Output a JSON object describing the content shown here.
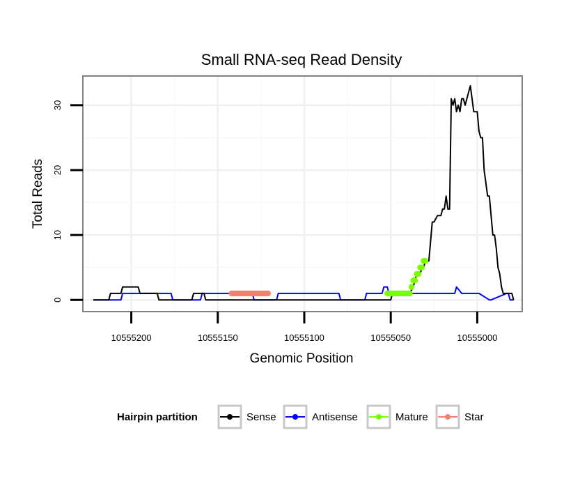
{
  "chart_data": {
    "type": "line",
    "title": "Small RNA-seq Read Density",
    "xlabel": "Genomic Position",
    "ylabel": "Total Reads",
    "x_reversed": true,
    "xlim": [
      10555228,
      10554974
    ],
    "ylim": [
      -1.8,
      34.5
    ],
    "x_ticks": [
      10555200,
      10555150,
      10555100,
      10555050,
      10555000
    ],
    "x_tick_labels": [
      "10555200",
      "10555150",
      "10555100",
      "10555050",
      "10555000"
    ],
    "y_ticks": [
      0,
      10,
      20,
      30
    ],
    "y_tick_labels": [
      "0",
      "10",
      "20",
      "30"
    ],
    "grid": true,
    "legend": {
      "title": "Hairpin partition",
      "position": "bottom",
      "entries": [
        {
          "name": "Sense",
          "color": "#000000"
        },
        {
          "name": "Antisense",
          "color": "#0000ff"
        },
        {
          "name": "Mature",
          "color": "#7cfc00"
        },
        {
          "name": "Star",
          "color": "#f08070"
        }
      ]
    },
    "series": [
      {
        "name": "Sense",
        "color": "#000000",
        "style": "line",
        "x": [
          10555222,
          10555213,
          10555212,
          10555206,
          10555205,
          10555196,
          10555195,
          10555191,
          10555190,
          10555185,
          10555184,
          10555165,
          10555164,
          10555158,
          10555157,
          10555135,
          10555134,
          10555105,
          10555104,
          10555074,
          10555073,
          10555050,
          10555049,
          10555046,
          10555045,
          10555043,
          10555042,
          10555040,
          10555039,
          10555037,
          10555036,
          10555035,
          10555033,
          10555032,
          10555031,
          10555030,
          10555029,
          10555028,
          10555026,
          10555025,
          10555023,
          10555022,
          10555021,
          10555020,
          10555019,
          10555018,
          10555017,
          10555016,
          10555015,
          10555014,
          10555013,
          10555012,
          10555011,
          10555010,
          10555009,
          10555008,
          10555007,
          10555006,
          10555004,
          10555002,
          10555001,
          10555000,
          10554999,
          10554998,
          10554997,
          10554996,
          10554995,
          10554994,
          10554993,
          10554992,
          10554991,
          10554990,
          10554989,
          10554988,
          10554987,
          10554986,
          10554985,
          10554984,
          10554983,
          10554982,
          10554981,
          10554980,
          10554979
        ],
        "y": [
          0,
          0,
          1,
          1,
          2,
          2,
          1,
          1,
          1,
          1,
          0,
          0,
          1,
          1,
          0,
          0,
          0,
          0,
          0,
          0,
          0,
          0,
          1,
          1,
          1,
          1,
          1,
          1,
          1,
          2,
          3,
          4,
          4,
          5,
          5,
          6,
          6,
          6,
          12,
          12,
          13,
          13,
          13,
          14,
          14,
          16,
          14,
          14,
          31,
          30,
          31,
          29,
          30,
          29,
          31,
          31,
          30,
          31,
          33,
          29,
          29,
          29,
          26,
          25,
          25,
          20,
          18,
          16,
          16,
          13,
          10,
          10,
          8,
          5,
          4,
          2,
          1,
          1,
          1,
          1,
          1,
          1,
          0
        ]
      },
      {
        "name": "Antisense",
        "color": "#0000ff",
        "style": "line",
        "x": [
          10555222,
          10555206,
          10555205,
          10555196,
          10555195,
          10555191,
          10555190,
          10555177,
          10555176,
          10555160,
          10555159,
          10555130,
          10555129,
          10555116,
          10555115,
          10555097,
          10555096,
          10555080,
          10555079,
          10555074,
          10555073,
          10555065,
          10555064,
          10555055,
          10555054,
          10555052,
          10555051,
          10555036,
          10555035,
          10555029,
          10555028,
          10555013,
          10555012,
          10555009,
          10555008,
          10555000,
          10554999,
          10554993,
          10554992,
          10554983,
          10554982,
          10554981,
          10554980,
          10554979
        ],
        "y": [
          0,
          0,
          1,
          1,
          1,
          1,
          1,
          1,
          0,
          0,
          1,
          1,
          0,
          0,
          1,
          1,
          1,
          1,
          0,
          0,
          0,
          0,
          1,
          1,
          2,
          2,
          1,
          1,
          1,
          1,
          1,
          1,
          2,
          1,
          1,
          1,
          1,
          0,
          0,
          1,
          1,
          0,
          0,
          0
        ]
      },
      {
        "name": "Mature",
        "color": "#7cfc00",
        "style": "points",
        "x": [
          10555052,
          10555051,
          10555050,
          10555049,
          10555048,
          10555047,
          10555046,
          10555045,
          10555044,
          10555043,
          10555042,
          10555041,
          10555040,
          10555039,
          10555038,
          10555037,
          10555036,
          10555035,
          10555034,
          10555033,
          10555032,
          10555031,
          10555030
        ],
        "y": [
          1,
          1,
          1,
          1,
          1,
          1,
          1,
          1,
          1,
          1,
          1,
          1,
          1,
          1,
          2,
          3,
          3,
          4,
          4,
          5,
          5,
          6,
          6
        ]
      },
      {
        "name": "Star",
        "color": "#f08070",
        "style": "points",
        "x": [
          10555142,
          10555141,
          10555140,
          10555139,
          10555138,
          10555137,
          10555136,
          10555135,
          10555134,
          10555133,
          10555132,
          10555131,
          10555130,
          10555129,
          10555128,
          10555127,
          10555126,
          10555125,
          10555124,
          10555123,
          10555122,
          10555121
        ],
        "y": [
          1,
          1,
          1,
          1,
          1,
          1,
          1,
          1,
          1,
          1,
          1,
          1,
          1,
          1,
          1,
          1,
          1,
          1,
          1,
          1,
          1,
          1
        ]
      }
    ]
  }
}
